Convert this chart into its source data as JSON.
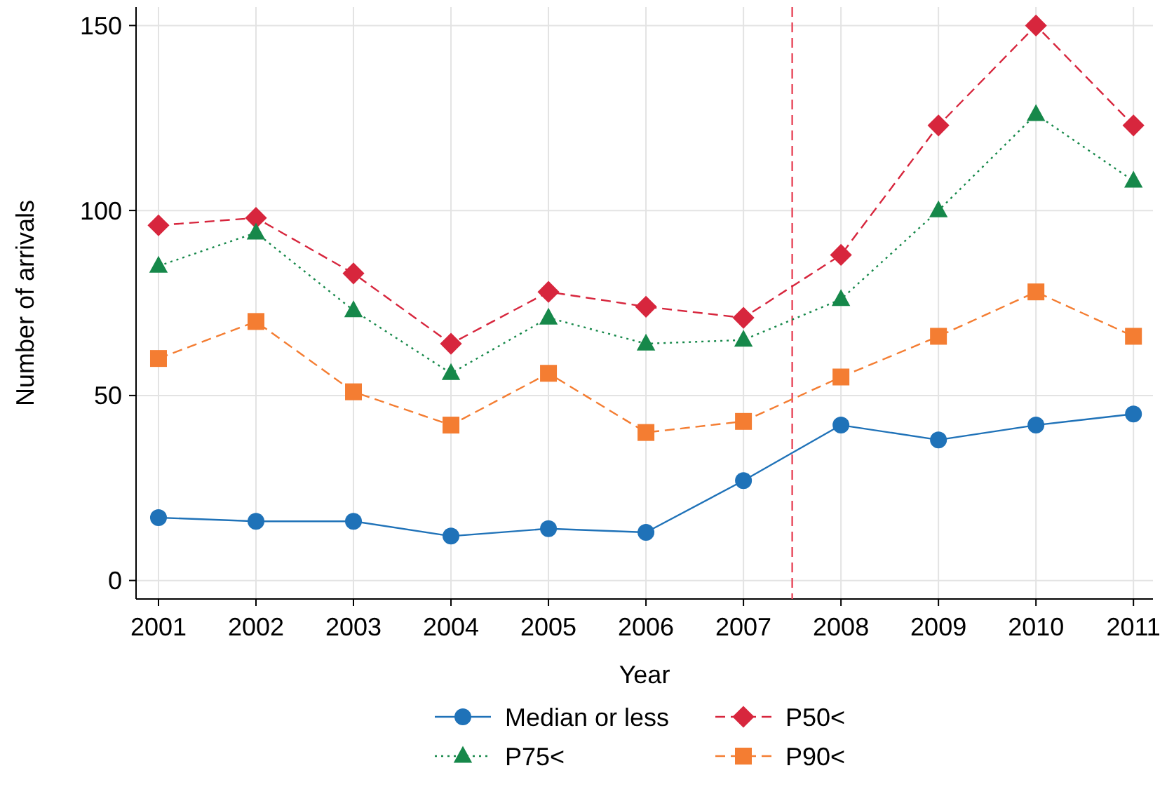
{
  "chart_data": {
    "type": "line",
    "xlabel": "Year",
    "ylabel": "Number of arrivals",
    "x": [
      2001,
      2002,
      2003,
      2004,
      2005,
      2006,
      2007,
      2008,
      2009,
      2010,
      2011
    ],
    "xlim": [
      2000.77,
      2011.2
    ],
    "xticks": [
      2001,
      2002,
      2003,
      2004,
      2005,
      2006,
      2007,
      2008,
      2009,
      2010,
      2011
    ],
    "ylim": [
      -5,
      155
    ],
    "yticks": [
      0,
      50,
      100,
      150
    ],
    "grid": true,
    "legend": "bottom",
    "ref_lines": [
      {
        "axis": "x",
        "value": 2007.5,
        "color": "#e8475a",
        "line_style": "dashed"
      }
    ],
    "series": [
      {
        "name": "Median or less",
        "color": "#1f72b8",
        "marker": "circle",
        "line_style": "solid",
        "values": [
          17,
          16,
          16,
          12,
          14,
          13,
          27,
          42,
          38,
          42,
          45
        ]
      },
      {
        "name": "P50<",
        "color": "#d7263d",
        "marker": "diamond",
        "line_style": "dashed",
        "values": [
          96,
          98,
          83,
          64,
          78,
          74,
          71,
          88,
          123,
          150,
          123
        ]
      },
      {
        "name": "P75<",
        "color": "#16884a",
        "marker": "triangle",
        "line_style": "dotted",
        "values": [
          85,
          94,
          73,
          56,
          71,
          64,
          65,
          76,
          100,
          126,
          108
        ]
      },
      {
        "name": "P90<",
        "color": "#f47d32",
        "marker": "square",
        "line_style": "dashed",
        "values": [
          60,
          70,
          51,
          42,
          56,
          40,
          43,
          55,
          66,
          78,
          66
        ]
      }
    ]
  }
}
